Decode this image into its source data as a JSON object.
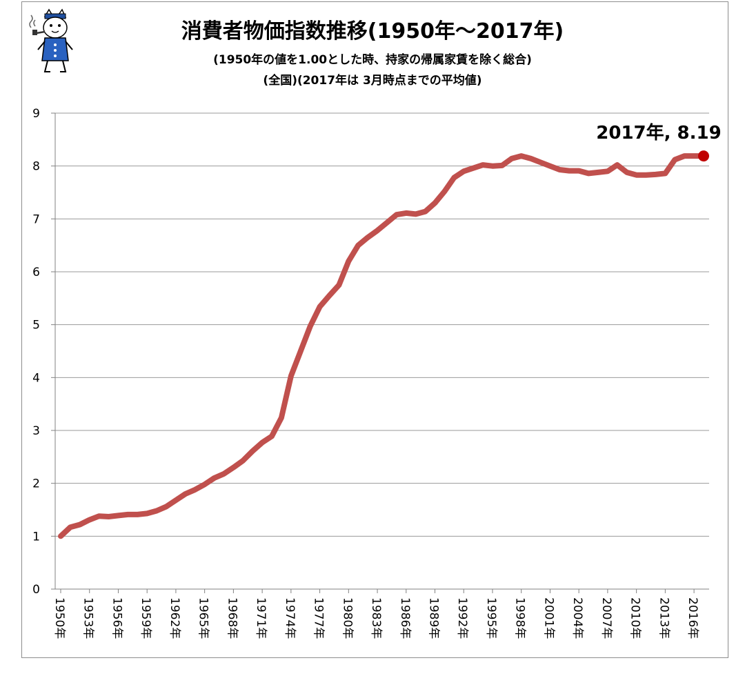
{
  "chart_data": {
    "type": "line",
    "title": "消費者物価指数推移(1950年〜2017年)",
    "subtitle_lines": [
      "(1950年の値を1.00とした時、持家の帰属家賃を除く総合)",
      "(全国)(2017年は 3月時点までの平均値)"
    ],
    "xlabel": "",
    "ylabel": "",
    "ylim": [
      0,
      9
    ],
    "yticks": [
      "0",
      "1",
      "2",
      "3",
      "4",
      "5",
      "6",
      "7",
      "8",
      "9"
    ],
    "x_tick_labels": [
      "1950年",
      "1953年",
      "1956年",
      "1959年",
      "1962年",
      "1965年",
      "1968年",
      "1971年",
      "1974年",
      "1977年",
      "1980年",
      "1983年",
      "1986年",
      "1989年",
      "1992年",
      "1995年",
      "1998年",
      "2001年",
      "2004年",
      "2007年",
      "2010年",
      "2013年",
      "2016年"
    ],
    "grid": true,
    "line_color": "#c0504d",
    "endpoint_color": "#c00000",
    "endpoint_label": "2017年, 8.19",
    "x": [
      1950,
      1951,
      1952,
      1953,
      1954,
      1955,
      1956,
      1957,
      1958,
      1959,
      1960,
      1961,
      1962,
      1963,
      1964,
      1965,
      1966,
      1967,
      1968,
      1969,
      1970,
      1971,
      1972,
      1973,
      1974,
      1975,
      1976,
      1977,
      1978,
      1979,
      1980,
      1981,
      1982,
      1983,
      1984,
      1985,
      1986,
      1987,
      1988,
      1989,
      1990,
      1991,
      1992,
      1993,
      1994,
      1995,
      1996,
      1997,
      1998,
      1999,
      2000,
      2001,
      2002,
      2003,
      2004,
      2005,
      2006,
      2007,
      2008,
      2009,
      2010,
      2011,
      2012,
      2013,
      2014,
      2015,
      2016,
      2017
    ],
    "series": [
      {
        "values": [
          1.0,
          1.17,
          1.22,
          1.31,
          1.38,
          1.37,
          1.39,
          1.41,
          1.41,
          1.43,
          1.48,
          1.56,
          1.68,
          1.8,
          1.88,
          1.98,
          2.1,
          2.18,
          2.3,
          2.43,
          2.61,
          2.77,
          2.89,
          3.24,
          4.03,
          4.5,
          4.97,
          5.34,
          5.55,
          5.75,
          6.2,
          6.5,
          6.65,
          6.78,
          6.93,
          7.08,
          7.11,
          7.09,
          7.14,
          7.3,
          7.52,
          7.78,
          7.9,
          7.96,
          8.02,
          8.0,
          8.01,
          8.14,
          8.19,
          8.14,
          8.07,
          8.0,
          7.93,
          7.91,
          7.91,
          7.86,
          7.88,
          7.9,
          8.02,
          7.88,
          7.83,
          7.83,
          7.84,
          7.86,
          8.12,
          8.19,
          8.19,
          8.19
        ]
      }
    ]
  },
  "mascot_icon": "cat-mascot-icon"
}
